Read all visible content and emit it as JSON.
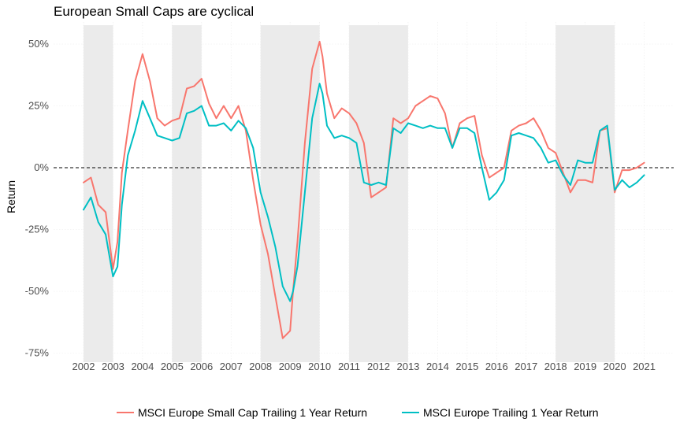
{
  "chart_data": {
    "type": "line",
    "title": "European Small Caps are cyclical",
    "xlabel": "",
    "ylabel": "Return",
    "xlim": [
      2002.0,
      2022.0
    ],
    "ylim": [
      -0.75,
      0.55
    ],
    "x_ticks": [
      2002,
      2003,
      2004,
      2005,
      2006,
      2007,
      2008,
      2009,
      2010,
      2011,
      2012,
      2013,
      2014,
      2015,
      2016,
      2017,
      2018,
      2019,
      2020,
      2021
    ],
    "y_ticks": [
      {
        "value": 0.5,
        "label": "50%"
      },
      {
        "value": 0.25,
        "label": "25%"
      },
      {
        "value": 0.0,
        "label": "0%"
      },
      {
        "value": -0.25,
        "label": "-25%"
      },
      {
        "value": -0.5,
        "label": "-50%"
      },
      {
        "value": -0.75,
        "label": "-75%"
      }
    ],
    "reference_line": 0.0,
    "shaded_periods": [
      [
        2002.0,
        2003.0
      ],
      [
        2005.0,
        2006.0
      ],
      [
        2008.0,
        2010.0
      ],
      [
        2011.0,
        2013.0
      ],
      [
        2018.0,
        2020.0
      ]
    ],
    "grid": true,
    "legend_position": "bottom",
    "colors": {
      "small_cap": "#F8766D",
      "europe": "#00BFC4",
      "shade": "#EBEBEB",
      "grid": "#EBEBEB",
      "zero_line": "#000000"
    },
    "series": [
      {
        "name": "MSCI Europe Small Cap Trailing 1 Year Return",
        "x": [
          2002.0,
          2002.25,
          2002.5,
          2002.75,
          2003.0,
          2003.15,
          2003.3,
          2003.5,
          2003.75,
          2004.0,
          2004.25,
          2004.5,
          2004.75,
          2005.0,
          2005.25,
          2005.5,
          2005.75,
          2006.0,
          2006.25,
          2006.5,
          2006.75,
          2007.0,
          2007.25,
          2007.5,
          2007.75,
          2008.0,
          2008.25,
          2008.5,
          2008.75,
          2009.0,
          2009.1,
          2009.25,
          2009.5,
          2009.75,
          2010.0,
          2010.1,
          2010.25,
          2010.5,
          2010.75,
          2011.0,
          2011.25,
          2011.5,
          2011.75,
          2012.0,
          2012.25,
          2012.5,
          2012.75,
          2013.0,
          2013.25,
          2013.5,
          2013.75,
          2014.0,
          2014.25,
          2014.5,
          2014.75,
          2015.0,
          2015.25,
          2015.5,
          2015.75,
          2016.0,
          2016.25,
          2016.5,
          2016.75,
          2017.0,
          2017.25,
          2017.5,
          2017.75,
          2018.0,
          2018.25,
          2018.5,
          2018.75,
          2019.0,
          2019.25,
          2019.5,
          2019.75,
          2020.0,
          2020.25,
          2020.5,
          2020.75,
          2021.0
        ],
        "values": [
          -0.06,
          -0.04,
          -0.15,
          -0.18,
          -0.41,
          -0.3,
          -0.02,
          0.15,
          0.35,
          0.46,
          0.35,
          0.2,
          0.17,
          0.19,
          0.2,
          0.32,
          0.33,
          0.36,
          0.26,
          0.2,
          0.25,
          0.2,
          0.25,
          0.15,
          -0.05,
          -0.23,
          -0.35,
          -0.52,
          -0.69,
          -0.66,
          -0.5,
          -0.3,
          0.1,
          0.4,
          0.51,
          0.45,
          0.3,
          0.2,
          0.24,
          0.22,
          0.18,
          0.1,
          -0.12,
          -0.1,
          -0.08,
          0.2,
          0.18,
          0.2,
          0.25,
          0.27,
          0.29,
          0.28,
          0.22,
          0.08,
          0.18,
          0.2,
          0.21,
          0.05,
          -0.04,
          -0.02,
          0.0,
          0.15,
          0.17,
          0.18,
          0.2,
          0.15,
          0.08,
          0.06,
          -0.02,
          -0.1,
          -0.05,
          -0.05,
          -0.06,
          0.15,
          0.16,
          -0.1,
          -0.01,
          -0.01,
          0.0,
          0.02
        ]
      },
      {
        "name": "MSCI Europe Trailing 1 Year Return",
        "x": [
          2002.0,
          2002.25,
          2002.5,
          2002.75,
          2003.0,
          2003.15,
          2003.3,
          2003.5,
          2003.75,
          2004.0,
          2004.25,
          2004.5,
          2004.75,
          2005.0,
          2005.25,
          2005.5,
          2005.75,
          2006.0,
          2006.25,
          2006.5,
          2006.75,
          2007.0,
          2007.25,
          2007.5,
          2007.75,
          2008.0,
          2008.25,
          2008.5,
          2008.75,
          2009.0,
          2009.1,
          2009.25,
          2009.5,
          2009.75,
          2010.0,
          2010.1,
          2010.25,
          2010.5,
          2010.75,
          2011.0,
          2011.25,
          2011.5,
          2011.75,
          2012.0,
          2012.25,
          2012.5,
          2012.75,
          2013.0,
          2013.25,
          2013.5,
          2013.75,
          2014.0,
          2014.25,
          2014.5,
          2014.75,
          2015.0,
          2015.25,
          2015.5,
          2015.75,
          2016.0,
          2016.25,
          2016.5,
          2016.75,
          2017.0,
          2017.25,
          2017.5,
          2017.75,
          2018.0,
          2018.25,
          2018.5,
          2018.75,
          2019.0,
          2019.25,
          2019.5,
          2019.75,
          2020.0,
          2020.25,
          2020.5,
          2020.75,
          2021.0
        ],
        "values": [
          -0.17,
          -0.12,
          -0.22,
          -0.27,
          -0.44,
          -0.4,
          -0.15,
          0.05,
          0.15,
          0.27,
          0.2,
          0.13,
          0.12,
          0.11,
          0.12,
          0.22,
          0.23,
          0.25,
          0.17,
          0.17,
          0.18,
          0.15,
          0.19,
          0.16,
          0.08,
          -0.1,
          -0.2,
          -0.32,
          -0.48,
          -0.54,
          -0.5,
          -0.4,
          -0.1,
          0.2,
          0.34,
          0.3,
          0.17,
          0.12,
          0.13,
          0.12,
          0.1,
          -0.06,
          -0.07,
          -0.06,
          -0.07,
          0.16,
          0.14,
          0.18,
          0.17,
          0.16,
          0.17,
          0.16,
          0.16,
          0.08,
          0.16,
          0.16,
          0.14,
          0.0,
          -0.13,
          -0.1,
          -0.05,
          0.13,
          0.14,
          0.13,
          0.12,
          0.08,
          0.02,
          0.03,
          -0.03,
          -0.07,
          0.03,
          0.02,
          0.02,
          0.15,
          0.17,
          -0.09,
          -0.05,
          -0.08,
          -0.06,
          -0.03
        ]
      }
    ]
  }
}
